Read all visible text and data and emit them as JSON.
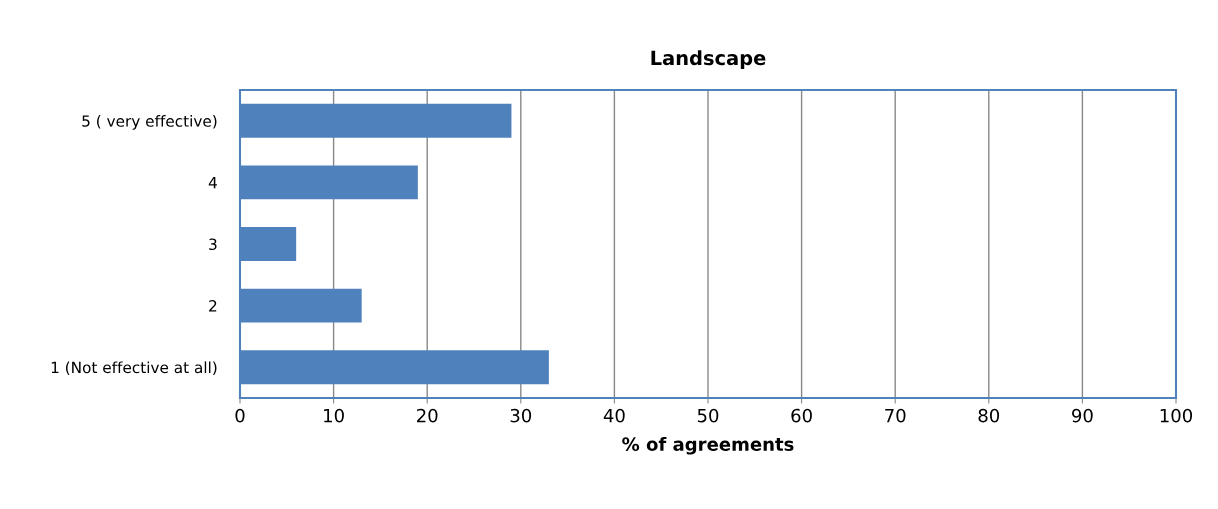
{
  "chart_data": {
    "type": "bar",
    "orientation": "horizontal",
    "title": "Landscape",
    "xlabel": "% of agreements",
    "categories": [
      "5 ( very effective)",
      "4",
      "3",
      "2",
      "1 (Not effective at all)"
    ],
    "values": [
      29,
      19,
      6,
      13,
      33
    ],
    "color": "#4f81bd",
    "xlim": [
      0,
      100
    ],
    "xticks": [
      0,
      10,
      20,
      30,
      40,
      50,
      60,
      70,
      80,
      90,
      100
    ],
    "grid": "x"
  }
}
